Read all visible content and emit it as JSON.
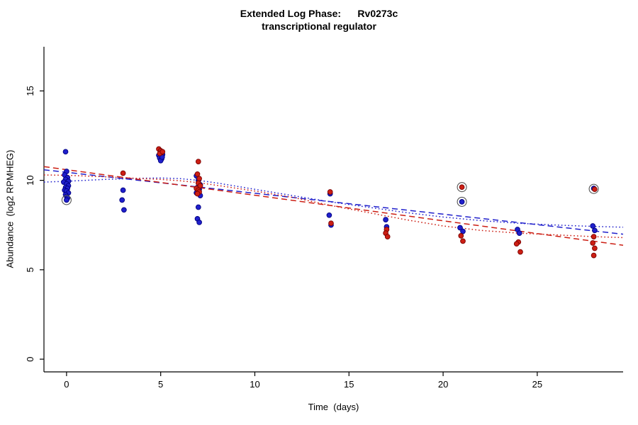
{
  "title": {
    "line1": "Extended Log Phase:      Rv0273c",
    "line2": "transcriptional regulator"
  },
  "chart_data": {
    "type": "scatter",
    "xlabel": "Time  (days)",
    "ylabel": "Abundance  (log2 RPMHEG)",
    "xlim": [
      -1.2,
      29.56
    ],
    "ylim": [
      -0.71,
      17.47
    ],
    "xticks": [
      0,
      5,
      10,
      15,
      20,
      25
    ],
    "yticks": [
      0,
      5,
      10,
      15
    ],
    "grid": "off",
    "legend": "none",
    "colors": {
      "blue": "#2020cc",
      "red": "#cc1f14",
      "outlier_ring": "#555555"
    },
    "series": [
      {
        "name": "blue-points",
        "color": "#2020cc",
        "edge": "#000080",
        "points": [
          [
            -0.05,
            11.6
          ],
          [
            0,
            10.5
          ],
          [
            -0.1,
            10.3
          ],
          [
            0.05,
            10.15
          ],
          [
            -0.05,
            10.05
          ],
          [
            0.1,
            9.95
          ],
          [
            -0.15,
            9.9
          ],
          [
            0,
            9.8
          ],
          [
            0.1,
            9.7
          ],
          [
            -0.05,
            9.6
          ],
          [
            0.05,
            9.55
          ],
          [
            -0.1,
            9.45
          ],
          [
            0,
            9.4
          ],
          [
            0.1,
            9.3
          ],
          [
            -0.05,
            9.2
          ],
          [
            0,
            9.1
          ],
          [
            0.05,
            9.0
          ],
          [
            0,
            8.9
          ],
          [
            3,
            9.45
          ],
          [
            2.95,
            8.9
          ],
          [
            3.05,
            8.35
          ],
          [
            4.9,
            11.4
          ],
          [
            5,
            11.35
          ],
          [
            5.1,
            11.45
          ],
          [
            4.95,
            11.25
          ],
          [
            5.05,
            11.2
          ],
          [
            5,
            11.1
          ],
          [
            5.08,
            11.3
          ],
          [
            6.9,
            10.25
          ],
          [
            7,
            10.0
          ],
          [
            7.1,
            9.75
          ],
          [
            6.95,
            9.6
          ],
          [
            7.05,
            9.5
          ],
          [
            7,
            9.4
          ],
          [
            6.9,
            9.3
          ],
          [
            7.1,
            9.15
          ],
          [
            7,
            8.5
          ],
          [
            6.95,
            7.85
          ],
          [
            7.05,
            7.65
          ],
          [
            14,
            9.25
          ],
          [
            13.95,
            8.05
          ],
          [
            14.05,
            7.5
          ],
          [
            16.95,
            7.8
          ],
          [
            17,
            7.4
          ],
          [
            21,
            8.8
          ],
          [
            20.9,
            7.35
          ],
          [
            21.05,
            7.15
          ],
          [
            23.95,
            7.25
          ],
          [
            24.05,
            7.05
          ],
          [
            28,
            9.55
          ],
          [
            27.95,
            7.45
          ],
          [
            28.05,
            7.2
          ]
        ]
      },
      {
        "name": "red-points",
        "color": "#cc1f14",
        "edge": "#7a0000",
        "points": [
          [
            3,
            10.4
          ],
          [
            4.9,
            11.75
          ],
          [
            5,
            11.65
          ],
          [
            5.05,
            11.55
          ],
          [
            4.95,
            11.5
          ],
          [
            5.1,
            11.6
          ],
          [
            7,
            11.05
          ],
          [
            6.95,
            10.35
          ],
          [
            7.05,
            10.1
          ],
          [
            7,
            9.85
          ],
          [
            7.1,
            9.7
          ],
          [
            6.9,
            9.55
          ],
          [
            7,
            9.45
          ],
          [
            7.05,
            9.35
          ],
          [
            6.95,
            9.25
          ],
          [
            14,
            9.35
          ],
          [
            14.05,
            7.6
          ],
          [
            17,
            7.25
          ],
          [
            16.95,
            7.05
          ],
          [
            17.05,
            6.85
          ],
          [
            21,
            9.62
          ],
          [
            20.95,
            6.9
          ],
          [
            21.05,
            6.6
          ],
          [
            24,
            6.55
          ],
          [
            23.9,
            6.45
          ],
          [
            24.1,
            6.0
          ],
          [
            28.05,
            9.5
          ],
          [
            28,
            6.85
          ],
          [
            27.95,
            6.5
          ],
          [
            28.05,
            6.2
          ],
          [
            28,
            5.8
          ]
        ]
      }
    ],
    "outlier_circles": {
      "color": "#555555",
      "points": [
        [
          0,
          8.9
        ],
        [
          21,
          9.62
        ],
        [
          21,
          8.8
        ],
        [
          28,
          9.52
        ]
      ]
    },
    "trend_lines": [
      {
        "name": "blue-dashed-fit",
        "style": "dashed",
        "color": "#2020cc",
        "x": [
          -1.2,
          29.56
        ],
        "y": [
          10.59,
          6.99
        ]
      },
      {
        "name": "red-dashed-fit",
        "style": "dashed",
        "color": "#cc1f14",
        "x": [
          -1.2,
          29.56
        ],
        "y": [
          10.77,
          6.37
        ]
      },
      {
        "name": "blue-dotted-fit",
        "style": "dotted",
        "color": "#2020cc",
        "x": [
          -1.2,
          0,
          2,
          4,
          5,
          6,
          7,
          8,
          10,
          12,
          14,
          16,
          18,
          20,
          22,
          24,
          26,
          28,
          29.56
        ],
        "y": [
          9.9,
          9.95,
          10.05,
          10.12,
          10.13,
          10.1,
          10.0,
          9.85,
          9.5,
          9.15,
          8.8,
          8.5,
          8.2,
          7.95,
          7.75,
          7.6,
          7.5,
          7.42,
          7.38
        ]
      },
      {
        "name": "red-dotted-fit",
        "style": "dotted",
        "color": "#cc1f14",
        "x": [
          -1.2,
          0,
          2,
          4,
          5,
          6,
          7,
          8,
          10,
          12,
          14,
          16,
          18,
          20,
          22,
          24,
          26,
          28,
          29.56
        ],
        "y": [
          10.3,
          10.28,
          10.2,
          10.1,
          10.05,
          9.98,
          9.87,
          9.72,
          9.4,
          9.05,
          8.6,
          8.2,
          7.8,
          7.45,
          7.2,
          7.05,
          6.95,
          6.85,
          6.8
        ]
      }
    ]
  }
}
